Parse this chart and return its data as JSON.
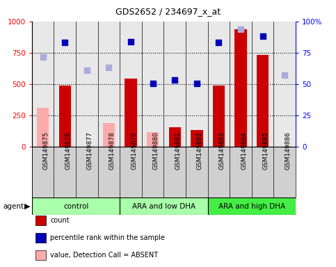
{
  "title": "GDS2652 / 234697_x_at",
  "samples": [
    "GSM149875",
    "GSM149876",
    "GSM149877",
    "GSM149878",
    "GSM149879",
    "GSM149880",
    "GSM149881",
    "GSM149882",
    "GSM149883",
    "GSM149884",
    "GSM149885",
    "GSM149886"
  ],
  "count_present": [
    null,
    490,
    null,
    null,
    545,
    null,
    155,
    135,
    490,
    940,
    730,
    null
  ],
  "count_absent": [
    310,
    null,
    null,
    190,
    null,
    120,
    null,
    null,
    null,
    null,
    null,
    null
  ],
  "pct_present": [
    null,
    830,
    null,
    null,
    840,
    505,
    535,
    505,
    830,
    null,
    880,
    null
  ],
  "pct_absent": [
    715,
    null,
    610,
    635,
    null,
    null,
    null,
    null,
    null,
    940,
    null,
    570
  ],
  "ylim": [
    0,
    1000
  ],
  "yticks_left": [
    0,
    250,
    500,
    750,
    1000
  ],
  "yticks_right_vals": [
    0,
    250,
    500,
    750,
    1000
  ],
  "yticks_right_labels": [
    "0",
    "25",
    "50",
    "75",
    "100%"
  ],
  "color_count_present": "#cc0000",
  "color_count_absent": "#ffaaaa",
  "color_pct_present": "#0000bb",
  "color_pct_absent": "#aaaadd",
  "bg_color": "#ffffff",
  "plot_bg": "#e8e8e8",
  "label_bg": "#d0d0d0",
  "group_colors": [
    "#aaffaa",
    "#aaffaa",
    "#44ee44"
  ],
  "group_labels": [
    "control",
    "ARA and low DHA",
    "ARA and high DHA"
  ],
  "group_starts": [
    0,
    4,
    8
  ],
  "group_ends": [
    3,
    7,
    11
  ]
}
